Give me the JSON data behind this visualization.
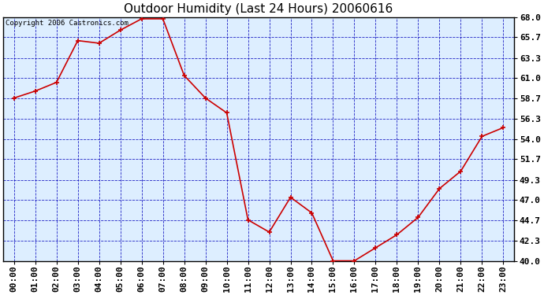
{
  "title": "Outdoor Humidity (Last 24 Hours) 20060616",
  "copyright_text": "Copyright 2006 Castronics.com",
  "x_labels": [
    "00:00",
    "01:00",
    "02:00",
    "03:00",
    "04:00",
    "05:00",
    "06:00",
    "07:00",
    "08:00",
    "09:00",
    "10:00",
    "11:00",
    "12:00",
    "13:00",
    "14:00",
    "15:00",
    "16:00",
    "17:00",
    "18:00",
    "19:00",
    "20:00",
    "21:00",
    "22:00",
    "23:00"
  ],
  "y_values": [
    58.7,
    59.5,
    60.5,
    65.3,
    65.0,
    66.5,
    67.8,
    67.8,
    61.3,
    58.7,
    57.0,
    44.7,
    43.3,
    47.3,
    45.5,
    40.0,
    40.0,
    41.5,
    43.0,
    45.0,
    48.3,
    50.3,
    54.3,
    55.3
  ],
  "y_ticks": [
    40.0,
    42.3,
    44.7,
    47.0,
    49.3,
    51.7,
    54.0,
    56.3,
    58.7,
    61.0,
    63.3,
    65.7,
    68.0
  ],
  "ylim": [
    40.0,
    68.0
  ],
  "line_color": "#cc0000",
  "marker_color": "#cc0000",
  "fig_bg_color": "#ffffff",
  "plot_bg_color": "#ddeeff",
  "grid_color": "#0000bb",
  "border_color": "#000000",
  "title_fontsize": 11,
  "copyright_fontsize": 6.5,
  "tick_fontsize": 8,
  "marker": "+",
  "marker_size": 5,
  "linewidth": 1.2
}
